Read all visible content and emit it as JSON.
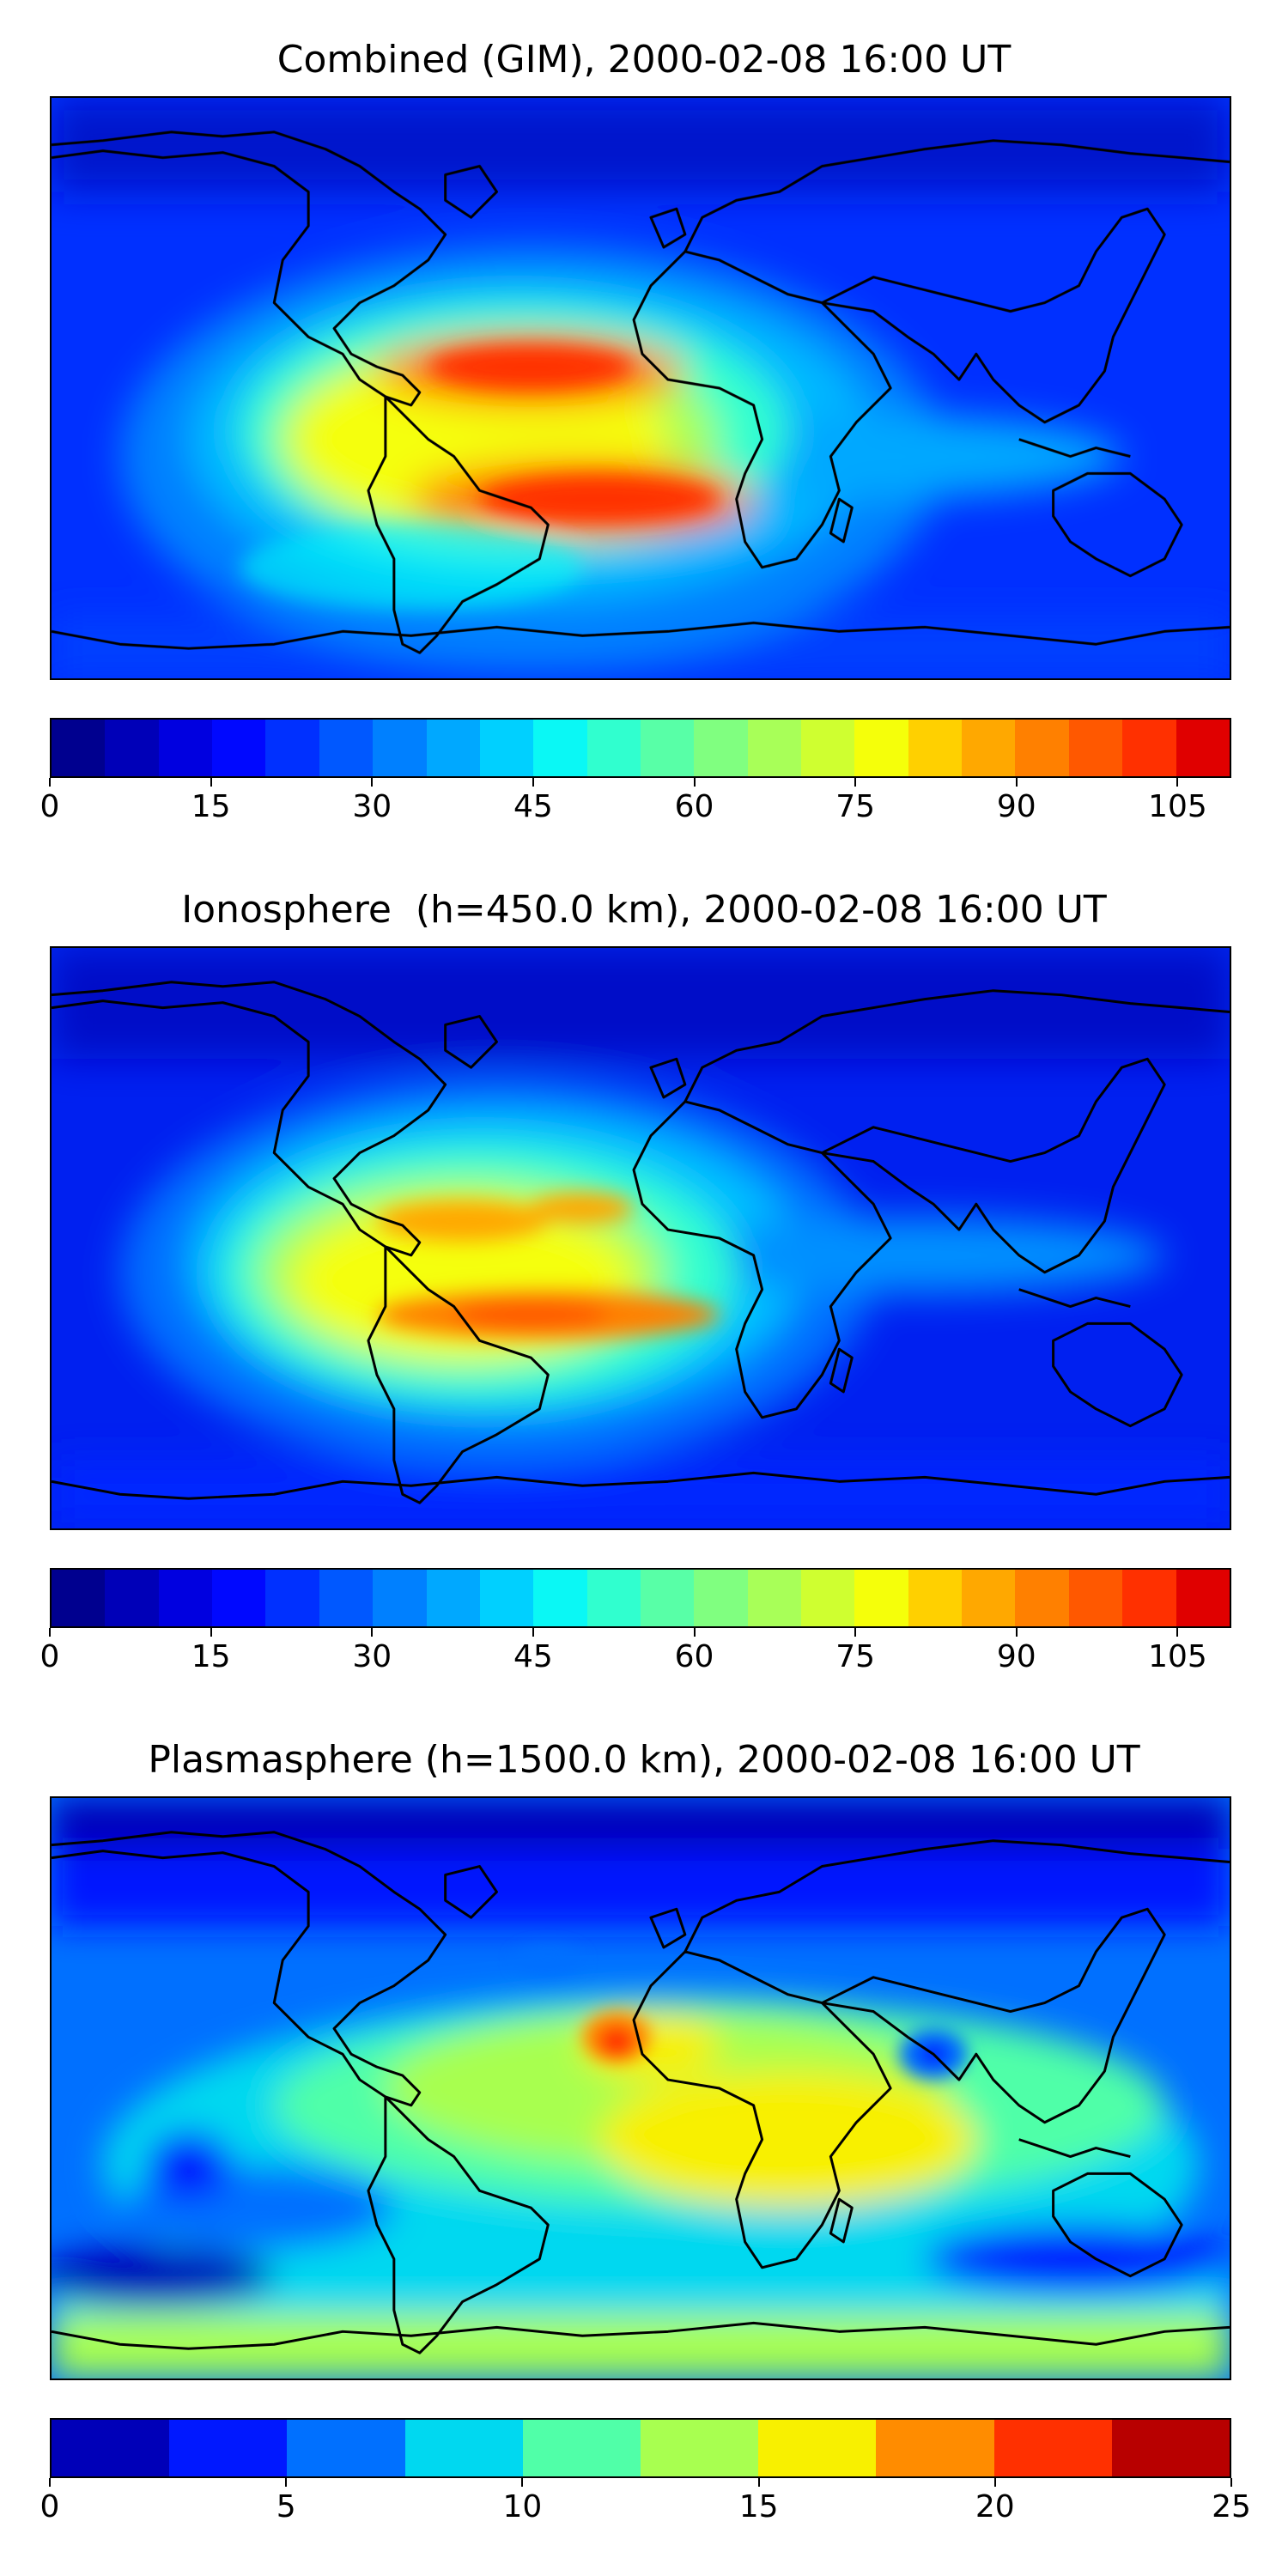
{
  "chart_data": [
    {
      "type": "heatmap",
      "title": "Combined (GIM), 2000-02-08 16:00 UT",
      "colorbar": {
        "range": [
          0,
          110
        ],
        "levels": 22,
        "tick_values": [
          0,
          15,
          30,
          45,
          60,
          75,
          90,
          105
        ],
        "tick_labels": [
          "0",
          "15",
          "30",
          "45",
          "60",
          "75",
          "90",
          "105"
        ]
      },
      "features": [
        {
          "region": "Tropical Atlantic north of equator",
          "peak": 100
        },
        {
          "region": "South America / South Atlantic crest",
          "peak": 100
        },
        {
          "region": "Equatorial Indian Ocean band",
          "peak": 45
        },
        {
          "region": "High latitudes",
          "peak": 10
        }
      ]
    },
    {
      "type": "heatmap",
      "title": "Ionosphere  (h=450.0 km), 2000-02-08 16:00 UT",
      "colorbar": {
        "range": [
          0,
          110
        ],
        "levels": 22,
        "tick_values": [
          0,
          15,
          30,
          45,
          60,
          75,
          90,
          105
        ],
        "tick_labels": [
          "0",
          "15",
          "30",
          "45",
          "60",
          "75",
          "90",
          "105"
        ]
      },
      "features": [
        {
          "region": "Northern crest, Caribbean / West Africa",
          "peak": 85
        },
        {
          "region": "Southern crest, South America / South Atlantic",
          "peak": 90
        },
        {
          "region": "Indian Ocean / Indonesia band",
          "peak": 40
        },
        {
          "region": "High latitudes",
          "peak": 5
        }
      ]
    },
    {
      "type": "heatmap",
      "title": "Plasmasphere (h=1500.0 km), 2000-02-08 16:00 UT",
      "colorbar": {
        "range": [
          0,
          25
        ],
        "levels": 10,
        "tick_values": [
          0,
          5,
          10,
          15,
          20,
          25
        ],
        "tick_labels": [
          "0",
          "5",
          "10",
          "15",
          "20",
          "25"
        ]
      },
      "features": [
        {
          "region": "West Africa maximum",
          "peak": 21
        },
        {
          "region": "Africa / Indian Ocean",
          "peak": 16
        },
        {
          "region": "Southern Ocean band",
          "peak": 13
        },
        {
          "region": "Arctic",
          "peak": 2
        }
      ]
    }
  ],
  "colormaps": {
    "jet22": [
      "#00008f",
      "#0000b8",
      "#0000e0",
      "#0008ff",
      "#0030ff",
      "#0058ff",
      "#0080ff",
      "#00a8ff",
      "#00d0ff",
      "#0af8f5",
      "#30ffcf",
      "#58ffa7",
      "#80ff80",
      "#a8ff58",
      "#cfff30",
      "#f5ff0a",
      "#ffd000",
      "#ffa800",
      "#ff8000",
      "#ff5800",
      "#ff3000",
      "#e00000"
    ],
    "jet10": [
      "#0000b8",
      "#0018ff",
      "#0070ff",
      "#00d8f0",
      "#50ffa8",
      "#a8ff50",
      "#f8f000",
      "#ff8c00",
      "#ff3000",
      "#b80000"
    ]
  }
}
